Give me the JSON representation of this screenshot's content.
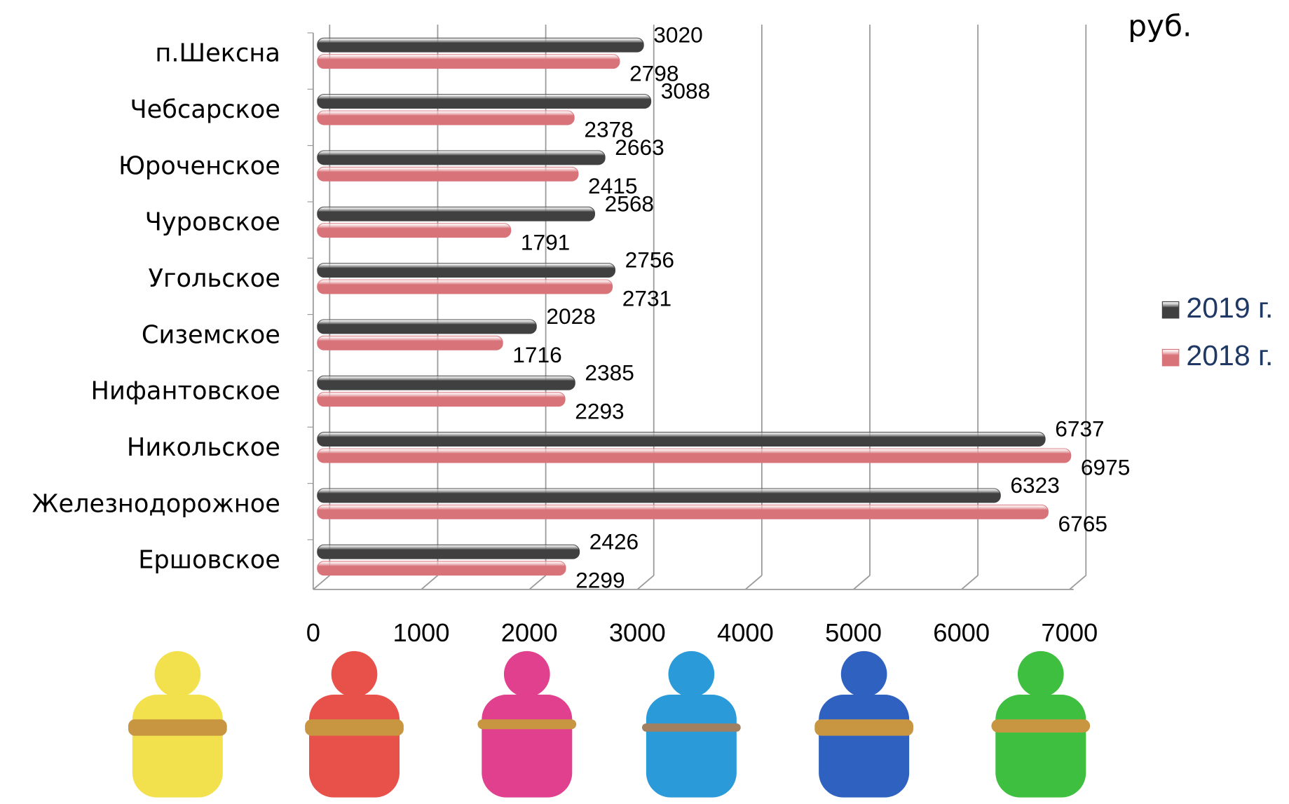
{
  "chart_data": {
    "type": "bar",
    "orientation": "horizontal",
    "unit_label": "руб.",
    "categories": [
      "п.Шексна",
      "Чебсарское",
      "Юроченское",
      "Чуровское",
      "Угольское",
      "Сиземское",
      "Нифантовское",
      "Никольское",
      "Железнодорожное",
      "Ершовское"
    ],
    "series": [
      {
        "name": "2019 г.",
        "color": "#404040",
        "values": [
          3020,
          3088,
          2663,
          2568,
          2756,
          2028,
          2385,
          6737,
          6323,
          2426
        ]
      },
      {
        "name": "2018 г.",
        "color": "#d9737a",
        "values": [
          2798,
          2378,
          2415,
          1791,
          2731,
          1716,
          2293,
          6975,
          6765,
          2299
        ]
      }
    ],
    "xlim": [
      0,
      7000
    ],
    "xticks": [
      0,
      1000,
      2000,
      3000,
      4000,
      5000,
      6000,
      7000
    ],
    "grid": true,
    "legend": "right"
  }
}
